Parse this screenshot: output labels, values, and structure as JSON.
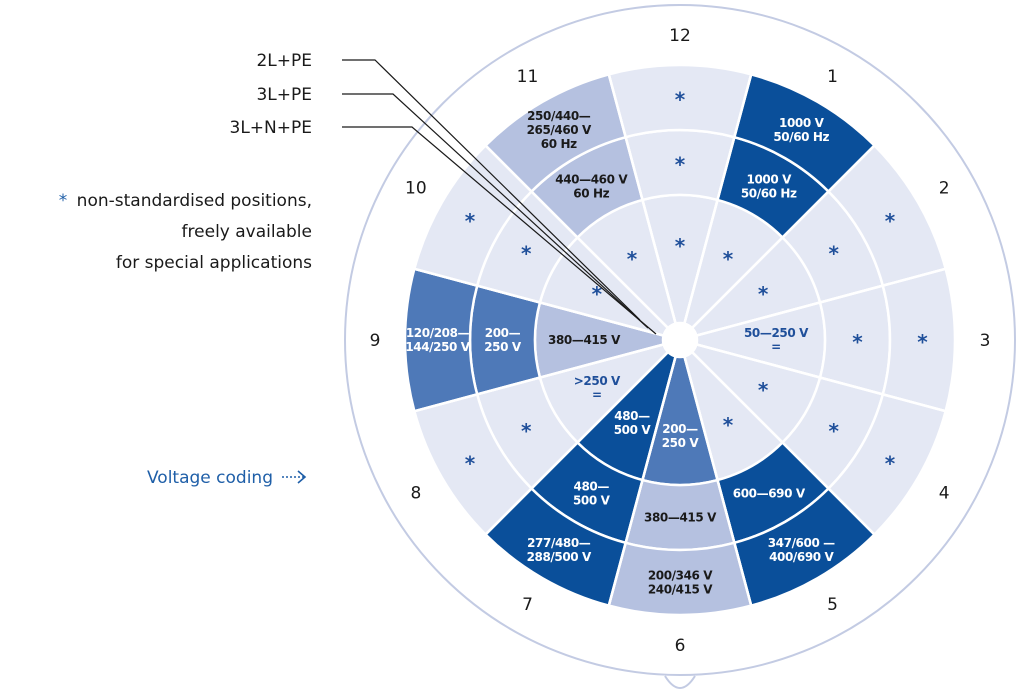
{
  "legend": {
    "wires": [
      "2L+PE",
      "3L+PE",
      "3L+N+PE"
    ],
    "note_star": "*",
    "note_lines": [
      "non-standardised positions,",
      "freely available",
      "for special applications"
    ],
    "voltage_coding": "Voltage coding",
    "voltage_coding_arrow": "→"
  },
  "clock_numbers": [
    "12",
    "1",
    "2",
    "3",
    "4",
    "5",
    "6",
    "7",
    "8",
    "9",
    "10",
    "11"
  ],
  "star_symbol": "*",
  "colors": {
    "light": "#e4e8f4",
    "medium": "#b5c1e0",
    "dark": "#0a4f9a",
    "mid_blue": "#4e79b8",
    "ring_line": "#c3cbe3",
    "text_blue": "#1f5fa8"
  },
  "rings": [
    "3L+N+PE",
    "3L+PE",
    "2L+PE"
  ],
  "positions": [
    {
      "pos": "12",
      "outer": {
        "text": [
          "*"
        ],
        "style": "light"
      },
      "middle": {
        "text": [
          "*"
        ],
        "style": "light"
      },
      "inner": {
        "text": [
          "*"
        ],
        "style": "light"
      }
    },
    {
      "pos": "1",
      "outer": {
        "text": [
          "1000 V",
          "50/60 Hz"
        ],
        "style": "dark"
      },
      "middle": {
        "text": [
          "1000 V",
          "50/60 Hz"
        ],
        "style": "dark"
      },
      "inner": {
        "text": [
          "*"
        ],
        "style": "light"
      }
    },
    {
      "pos": "2",
      "outer": {
        "text": [
          "*"
        ],
        "style": "light"
      },
      "middle": {
        "text": [
          "*"
        ],
        "style": "light"
      },
      "inner": {
        "text": [
          "*"
        ],
        "style": "light"
      }
    },
    {
      "pos": "3",
      "outer": {
        "text": [
          "*"
        ],
        "style": "light"
      },
      "middle": {
        "text": [
          "*"
        ],
        "style": "light"
      },
      "inner": {
        "text": [
          "50—250 V",
          "="
        ],
        "style": "light"
      }
    },
    {
      "pos": "4",
      "outer": {
        "text": [
          "*"
        ],
        "style": "light"
      },
      "middle": {
        "text": [
          "*"
        ],
        "style": "light"
      },
      "inner": {
        "text": [
          "*"
        ],
        "style": "light"
      }
    },
    {
      "pos": "5",
      "outer": {
        "text": [
          "347/600 —",
          "400/690 V"
        ],
        "style": "dark"
      },
      "middle": {
        "text": [
          "600—690 V"
        ],
        "style": "dark"
      },
      "inner": {
        "text": [
          "*"
        ],
        "style": "light"
      }
    },
    {
      "pos": "6",
      "outer": {
        "text": [
          "200/346 V",
          "240/415 V"
        ],
        "style": "medium"
      },
      "middle": {
        "text": [
          "380—415 V"
        ],
        "style": "medium"
      },
      "inner": {
        "text": [
          "200—",
          "250 V"
        ],
        "style": "mid_blue"
      }
    },
    {
      "pos": "7",
      "outer": {
        "text": [
          "277/480—",
          "288/500 V"
        ],
        "style": "dark"
      },
      "middle": {
        "text": [
          "480—",
          "500 V"
        ],
        "style": "dark"
      },
      "inner": {
        "text": [
          "480—",
          "500 V"
        ],
        "style": "dark"
      }
    },
    {
      "pos": "8",
      "outer": {
        "text": [
          "*"
        ],
        "style": "light"
      },
      "middle": {
        "text": [
          "*"
        ],
        "style": "light"
      },
      "inner": {
        "text": [
          ">250 V",
          "="
        ],
        "style": "light"
      }
    },
    {
      "pos": "9",
      "outer": {
        "text": [
          "120/208—",
          "144/250 V"
        ],
        "style": "mid_blue"
      },
      "middle": {
        "text": [
          "200—",
          "250 V"
        ],
        "style": "mid_blue"
      },
      "inner": {
        "text": [
          "380—415 V"
        ],
        "style": "medium"
      }
    },
    {
      "pos": "10",
      "outer": {
        "text": [
          "*"
        ],
        "style": "light"
      },
      "middle": {
        "text": [
          "*"
        ],
        "style": "light"
      },
      "inner": {
        "text": [
          "*"
        ],
        "style": "light"
      }
    },
    {
      "pos": "11",
      "outer": {
        "text": [
          "250/440—",
          "265/460 V",
          "60 Hz"
        ],
        "style": "medium"
      },
      "middle": {
        "text": [
          "440—460 V",
          "60 Hz"
        ],
        "style": "medium"
      },
      "inner": {
        "text": [
          "*"
        ],
        "style": "light"
      }
    }
  ]
}
